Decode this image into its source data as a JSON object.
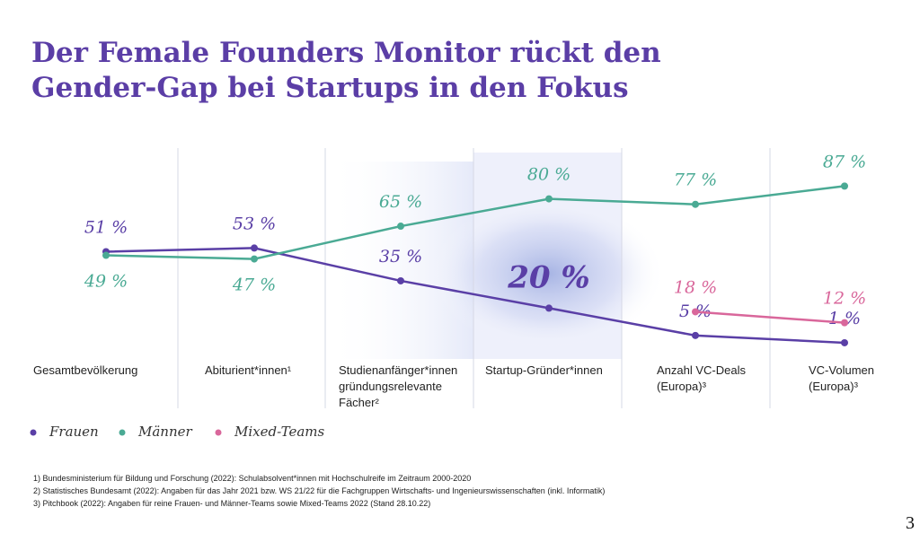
{
  "title": [
    "Der Female Founders Monitor rückt den",
    "Gender-Gap bei Startups in den Fokus"
  ],
  "chart_data": {
    "type": "line",
    "categories": [
      "Gesamtbevölkerung",
      "Abiturient*innen¹",
      "Studienanfänger*innen gründungsrelevante Fächer²",
      "Startup-Gründer*innen",
      "Anzahl VC-Deals (Europa)³",
      "VC-Volumen (Europa)³"
    ],
    "series": [
      {
        "name": "Frauen",
        "color": "#5a3fa6",
        "values": [
          51,
          53,
          35,
          20,
          5,
          1
        ],
        "value_labels": [
          "51 %",
          "53 %",
          "35 %",
          "20 %",
          "5 %",
          "1 %"
        ]
      },
      {
        "name": "Männer",
        "color": "#4aaa94",
        "values": [
          49,
          47,
          65,
          80,
          77,
          87
        ],
        "value_labels": [
          "49 %",
          "47 %",
          "65 %",
          "80 %",
          "77 %",
          "87 %"
        ]
      },
      {
        "name": "Mixed-Teams",
        "color": "#d9679b",
        "values": [
          null,
          null,
          null,
          null,
          18,
          12
        ],
        "value_labels": [
          null,
          null,
          null,
          null,
          "18 %",
          "12 %"
        ]
      }
    ]
  },
  "footnotes": [
    "1) Bundesministerium für Bildung und Forschung (2022): Schulabsolvent*innen mit Hochschulreife im Zeitraum 2000-2020",
    "2) Statistisches Bundesamt (2022): Angaben für das Jahr 2021 bzw. WS 21/22 für die Fachgruppen Wirtschafts- und Ingenieurswissenschaften (inkl. Informatik)",
    "3) Pitchbook (2022): Angaben für reine Frauen- und Männer-Teams sowie Mixed-Teams 2022 (Stand 28.10.22)"
  ],
  "page_number": "3"
}
